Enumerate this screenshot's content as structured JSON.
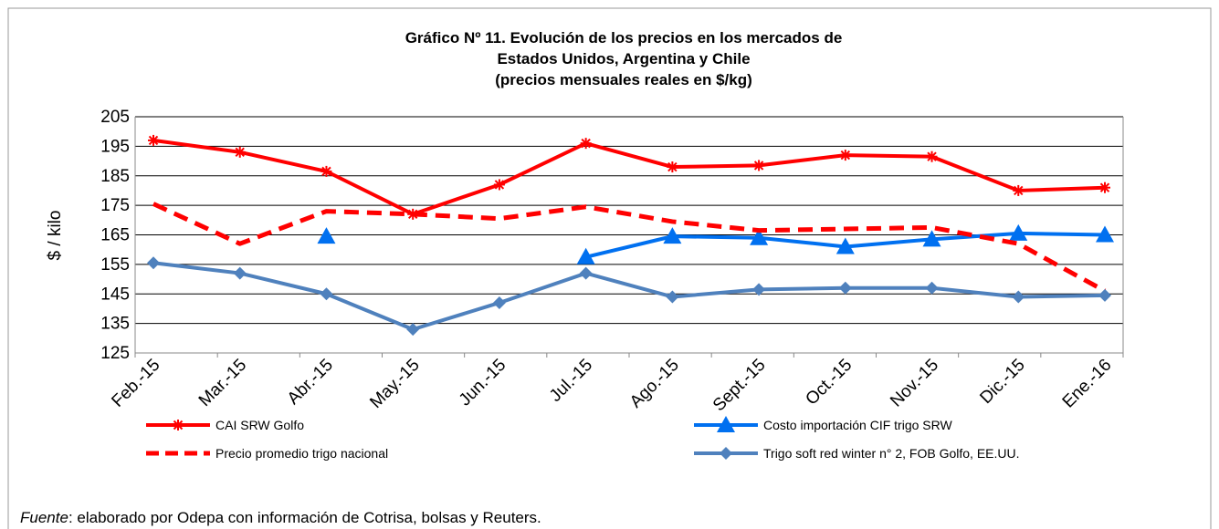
{
  "chart_data": {
    "type": "line",
    "title": [
      "Gráfico Nº 11. Evolución de los precios en los mercados de",
      "Estados Unidos, Argentina y Chile",
      "(precios mensuales reales en $/kg)"
    ],
    "ylabel": "$ / kilo",
    "categories": [
      "Feb.-15",
      "Mar.-15",
      "Abr.-15",
      "May.-15",
      "Jun.-15",
      "Jul.-15",
      "Ago.-15",
      "Sept.-15",
      "Oct.-15",
      "Nov.-15",
      "Dic.-15",
      "Ene.-16"
    ],
    "ylim": [
      125,
      205
    ],
    "yticks": [
      125,
      135,
      145,
      155,
      165,
      175,
      185,
      195,
      205
    ],
    "grid": true,
    "series": [
      {
        "name": "CAI SRW Golfo",
        "color": "#ff0000",
        "marker": "star",
        "dash": false,
        "values": [
          197,
          193,
          186.5,
          172,
          182,
          196,
          188,
          188.5,
          192,
          191.5,
          180,
          181
        ]
      },
      {
        "name": "Costo importación CIF trigo SRW",
        "color": "#0070f0",
        "marker": "triangle",
        "dash": false,
        "values": [
          null,
          null,
          164.5,
          null,
          null,
          157.5,
          164.5,
          164,
          161,
          163.5,
          165.5,
          165
        ]
      },
      {
        "name": "Precio promedio trigo nacional",
        "color": "#ff0000",
        "marker": "none",
        "dash": true,
        "values": [
          175.5,
          162,
          173,
          172,
          170.5,
          174.5,
          169.5,
          166.5,
          167,
          167.5,
          162,
          146
        ]
      },
      {
        "name": "Trigo soft red winter n° 2, FOB Golfo, EE.UU.",
        "color": "#4f81bd",
        "marker": "diamond",
        "dash": false,
        "values": [
          155.5,
          152,
          145,
          133,
          142,
          152,
          144,
          146.5,
          147,
          147,
          144,
          144.5
        ]
      }
    ],
    "source_label": "Fuente",
    "source_text": ": elaborado por Odepa con información de Cotrisa, bolsas y Reuters."
  }
}
